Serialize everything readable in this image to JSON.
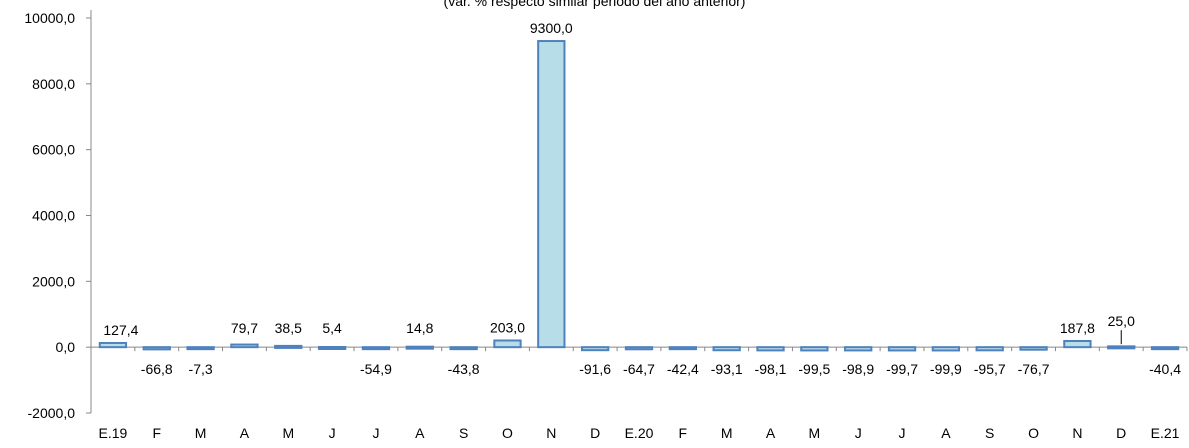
{
  "chart_data": {
    "type": "bar",
    "subtitle": "(var. % respecto similar periodo del año anterior)",
    "categories": [
      "E.19",
      "F",
      "M",
      "A",
      "M",
      "J",
      "J",
      "A",
      "S",
      "O",
      "N",
      "D",
      "E.20",
      "F",
      "M",
      "A",
      "M",
      "J",
      "J",
      "A",
      "S",
      "O",
      "N",
      "D",
      "E.21"
    ],
    "values": [
      127.4,
      -66.8,
      -7.3,
      79.7,
      38.5,
      5.4,
      -54.9,
      14.8,
      -43.8,
      203.0,
      9300.0,
      -91.6,
      -64.7,
      -42.4,
      -93.1,
      -98.1,
      -99.5,
      -98.9,
      -99.7,
      -99.9,
      -95.7,
      -76.7,
      187.8,
      25.0,
      -40.4
    ],
    "value_labels": [
      "127,4",
      "-66,8",
      "-7,3",
      "79,7",
      "38,5",
      "5,4",
      "-54,9",
      "14,8",
      "-43,8",
      "203,0",
      "9300,0",
      "-91,6",
      "-64,7",
      "-42,4",
      "-93,1",
      "-98,1",
      "-99,5",
      "-98,9",
      "-99,7",
      "-99,9",
      "-95,7",
      "-76,7",
      "187,8",
      "25,0",
      "-40,4"
    ],
    "ylim": [
      -2000,
      10000
    ],
    "y_ticks": [
      -2000,
      0,
      2000,
      4000,
      6000,
      8000,
      10000
    ],
    "y_tick_labels": [
      "-2000,0",
      "0,0",
      "2000,0",
      "4000,0",
      "6000,0",
      "8000,0",
      "10000,0"
    ],
    "grid": false,
    "colors": {
      "bar_fill": "#b7dde8",
      "bar_stroke": "#4f81bd",
      "axis": "#888888"
    }
  }
}
